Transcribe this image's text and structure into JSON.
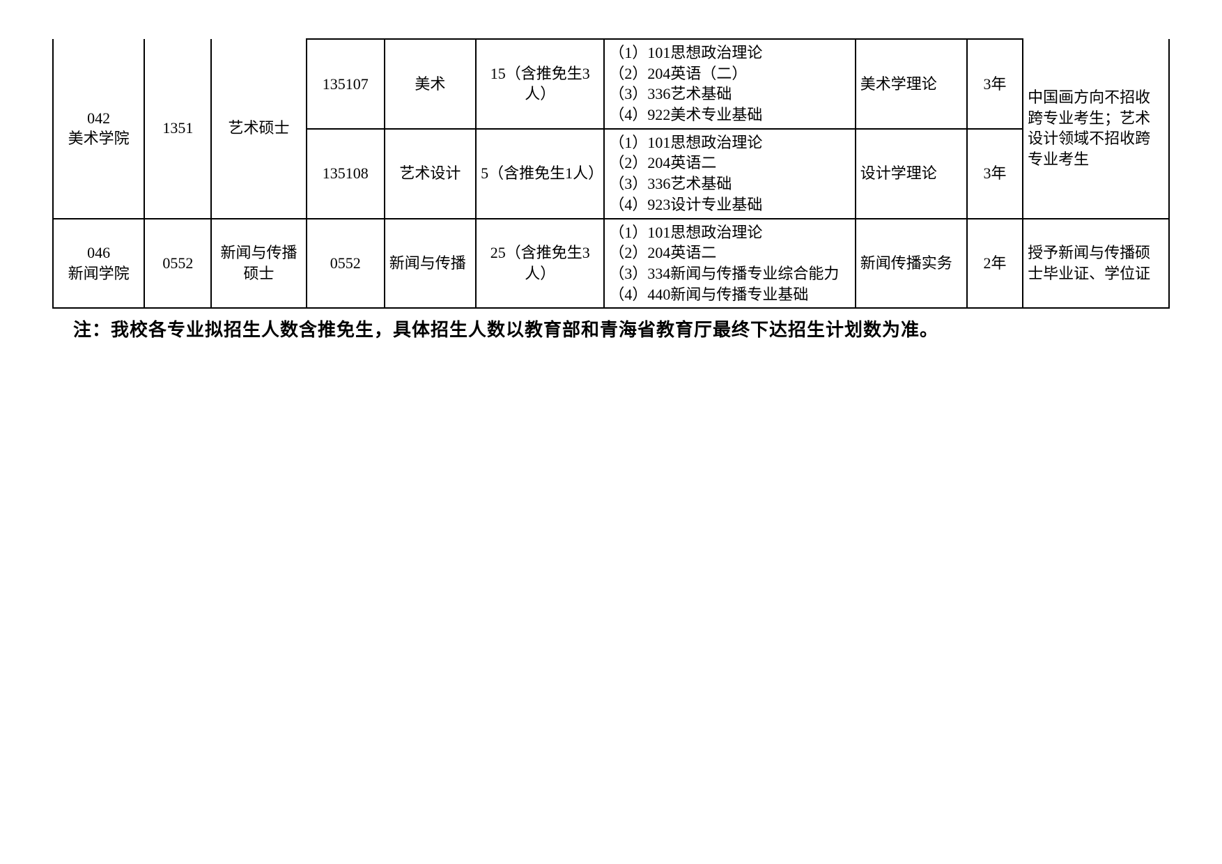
{
  "colWidths": [
    "8.2%",
    "6%",
    "8.5%",
    "7%",
    "8.2%",
    "11.5%",
    "22.5%",
    "10%",
    "5%",
    "13.1%"
  ],
  "rows": [
    {
      "c0": {
        "text": "042\n美术学院",
        "align": "center",
        "rowspan": 2,
        "topOpen": true
      },
      "c1": {
        "text": "1351",
        "align": "center",
        "rowspan": 2,
        "topOpen": true
      },
      "c2": {
        "text": "艺术硕士",
        "align": "center",
        "rowspan": 2,
        "topOpen": true
      },
      "c3": {
        "text": "135107",
        "align": "center"
      },
      "c4": {
        "text": "美术",
        "align": "center"
      },
      "c5": {
        "text": "15（含推免生3人）",
        "align": "center"
      },
      "c6": {
        "text": "（1）101思想政治理论\n（2）204英语（二）\n（3）336艺术基础\n（4）922美术专业基础",
        "align": "left"
      },
      "c7": {
        "text": "美术学理论",
        "align": "left"
      },
      "c8": {
        "text": "3年",
        "align": "center"
      },
      "c9": {
        "text": "中国画方向不招收跨专业考生；艺术设计领域不招收跨专业考生",
        "align": "left",
        "rowspan": 2,
        "topOpen": true
      }
    },
    {
      "c3": {
        "text": "135108",
        "align": "center"
      },
      "c4": {
        "text": "艺术设计",
        "align": "center"
      },
      "c5": {
        "text": "5（含推免生1人）",
        "align": "left"
      },
      "c6": {
        "text": "（1）101思想政治理论\n（2）204英语二\n（3）336艺术基础\n（4）923设计专业基础",
        "align": "left"
      },
      "c7": {
        "text": "设计学理论",
        "align": "left"
      },
      "c8": {
        "text": "3年",
        "align": "center"
      }
    },
    {
      "c0": {
        "text": "046\n新闻学院",
        "align": "center"
      },
      "c1": {
        "text": "0552",
        "align": "center"
      },
      "c2": {
        "text": "新闻与传播硕士",
        "align": "center"
      },
      "c3": {
        "text": "0552",
        "align": "center"
      },
      "c4": {
        "text": "新闻与传播",
        "align": "left"
      },
      "c5": {
        "text": "25（含推免生3人）",
        "align": "center"
      },
      "c6": {
        "text": "（1）101思想政治理论\n（2）204英语二\n（3）334新闻与传播专业综合能力\n（4）440新闻与传播专业基础",
        "align": "left"
      },
      "c7": {
        "text": "新闻传播实务",
        "align": "left"
      },
      "c8": {
        "text": "2年",
        "align": "center"
      },
      "c9": {
        "text": "授予新闻与传播硕士毕业证、学位证",
        "align": "left"
      }
    }
  ],
  "note": "注：我校各专业拟招生人数含推免生，具体招生人数以教育部和青海省教育厅最终下达招生计划数为准。"
}
